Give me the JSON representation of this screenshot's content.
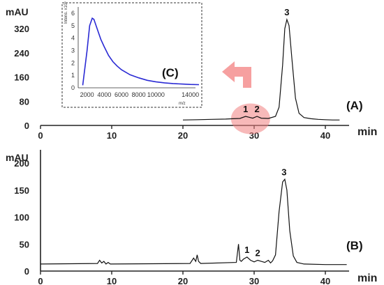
{
  "chart_data": [
    {
      "id": "A",
      "type": "line",
      "panel_label": "(A)",
      "ylabel": "mAU",
      "xlabel": "min",
      "xlim": [
        0,
        45
      ],
      "ylim": [
        0,
        380
      ],
      "yticks": [
        "0",
        "80",
        "160",
        "240",
        "320"
      ],
      "ytick_values": [
        0,
        80,
        160,
        240,
        320
      ],
      "xticks": [
        "0",
        "10",
        "20",
        "30",
        "40"
      ],
      "xtick_values": [
        0,
        10,
        20,
        30,
        40
      ],
      "trace": {
        "x": [
          20,
          22,
          24,
          26,
          27,
          28,
          28.8,
          29.3,
          29.8,
          30.4,
          31,
          32,
          33,
          33.5,
          34,
          34.3,
          34.6,
          34.9,
          35.3,
          35.8,
          36.3,
          37,
          38,
          39,
          40,
          41,
          42
        ],
        "y": [
          18,
          19,
          20,
          21,
          22,
          23,
          30,
          27,
          24,
          30,
          24,
          23,
          30,
          60,
          200,
          320,
          350,
          330,
          220,
          90,
          40,
          26,
          22,
          20,
          19,
          18,
          18
        ]
      },
      "peaks": [
        {
          "label": "1",
          "x": 28.8,
          "y": 30
        },
        {
          "label": "2",
          "x": 30.4,
          "y": 30
        },
        {
          "label": "3",
          "x": 34.6,
          "y": 350
        }
      ],
      "highlight_x": 29.5,
      "inset": {
        "label": "(C)",
        "type": "line",
        "xlabel": "m/z",
        "ylabel": "Intens. x10⁴",
        "xlim": [
          0,
          15000
        ],
        "ylim": [
          0,
          6.5
        ],
        "xticks": [
          "2000",
          "4000",
          "6000",
          "8000",
          "10000",
          "14000"
        ],
        "xtick_values": [
          2000,
          4000,
          6000,
          8000,
          10000,
          14000
        ],
        "yticks": [
          "0",
          "1",
          "2",
          "3",
          "4",
          "5",
          "6"
        ],
        "ytick_values": [
          0,
          1,
          2,
          3,
          4,
          5,
          6
        ],
        "line_color": "#2a2ad4",
        "x": [
          1500,
          2000,
          2300,
          2600,
          2800,
          3000,
          3300,
          3600,
          4000,
          4500,
          5000,
          5500,
          6000,
          7000,
          8000,
          9000,
          10000,
          11000,
          12000,
          13000,
          14000,
          15000
        ],
        "y": [
          0.2,
          3.0,
          5.0,
          5.6,
          5.5,
          5.1,
          4.5,
          3.9,
          3.3,
          2.6,
          2.1,
          1.75,
          1.45,
          1.05,
          0.8,
          0.6,
          0.48,
          0.4,
          0.34,
          0.3,
          0.27,
          0.25
        ]
      }
    },
    {
      "id": "B",
      "type": "line",
      "panel_label": "(B)",
      "ylabel": "mAU",
      "xlabel": "min",
      "xlim": [
        0,
        45
      ],
      "ylim": [
        0,
        240
      ],
      "yticks": [
        "0",
        "50",
        "100",
        "150",
        "200"
      ],
      "ytick_values": [
        0,
        50,
        100,
        150,
        200
      ],
      "xticks": [
        "0",
        "10",
        "20",
        "30",
        "40"
      ],
      "xtick_values": [
        0,
        10,
        20,
        30,
        40
      ],
      "trace": {
        "x": [
          0,
          8,
          8.3,
          8.6,
          8.9,
          9.2,
          9.5,
          9.8,
          21,
          21.5,
          21.8,
          22.0,
          22.2,
          22.5,
          27.5,
          27.8,
          28.0,
          28.2,
          28.5,
          29.0,
          29.5,
          30.0,
          30.5,
          31.0,
          31.5,
          32.0,
          32.3,
          32.6,
          33.0,
          33.5,
          34.0,
          34.3,
          34.6,
          35.0,
          35.5,
          36.0,
          37.0,
          40,
          43
        ],
        "y": [
          13,
          14,
          20,
          15,
          18,
          13,
          16,
          13,
          14,
          24,
          18,
          30,
          18,
          14,
          16,
          50,
          20,
          18,
          22,
          26,
          20,
          17,
          20,
          18,
          16,
          20,
          15,
          19,
          30,
          110,
          165,
          170,
          150,
          75,
          28,
          16,
          13,
          12,
          12
        ]
      },
      "peaks": [
        {
          "label": "1",
          "x": 29.0,
          "y": 26
        },
        {
          "label": "2",
          "x": 30.5,
          "y": 20
        },
        {
          "label": "3",
          "x": 34.2,
          "y": 170
        }
      ]
    }
  ],
  "arrow_color": "#f6a0a0",
  "highlight_color": "#f08080"
}
